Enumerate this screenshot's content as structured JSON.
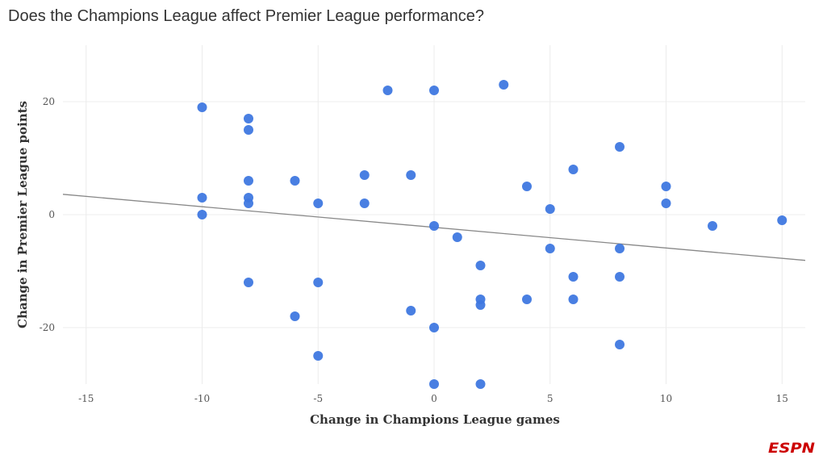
{
  "chart_data": {
    "type": "scatter",
    "title": "Does the Champions League affect Premier League performance?",
    "xlabel": "Change in Champions League games",
    "ylabel": "Change in Premier League points",
    "xlim": [
      -16,
      16
    ],
    "ylim": [
      -30,
      30
    ],
    "xticks": [
      -15,
      -10,
      -5,
      0,
      5,
      10,
      15
    ],
    "yticks": [
      -20,
      0,
      20
    ],
    "grid": true,
    "point_color": "#3f78e0",
    "trendline": {
      "x": [
        -16,
        16
      ],
      "y": [
        3.6,
        -8.1
      ],
      "color": "#888888"
    },
    "points": [
      [
        -10,
        19
      ],
      [
        -8,
        17
      ],
      [
        -8,
        15
      ],
      [
        -8,
        6
      ],
      [
        -8,
        3
      ],
      [
        -8,
        2
      ],
      [
        -10,
        3
      ],
      [
        -10,
        0
      ],
      [
        -6,
        6
      ],
      [
        -5,
        2
      ],
      [
        -3,
        7
      ],
      [
        -3,
        2
      ],
      [
        -2,
        22
      ],
      [
        0,
        22
      ],
      [
        3,
        23
      ],
      [
        -1,
        7
      ],
      [
        0,
        -2
      ],
      [
        1,
        -4
      ],
      [
        4,
        5
      ],
      [
        5,
        1
      ],
      [
        6,
        8
      ],
      [
        8,
        12
      ],
      [
        10,
        5
      ],
      [
        10,
        2
      ],
      [
        12,
        -2
      ],
      [
        15,
        -1
      ],
      [
        5,
        -6
      ],
      [
        8,
        -6
      ],
      [
        2,
        -9
      ],
      [
        6,
        -11
      ],
      [
        8,
        -11
      ],
      [
        -8,
        -12
      ],
      [
        -5,
        -12
      ],
      [
        2,
        -15
      ],
      [
        2,
        -16
      ],
      [
        4,
        -15
      ],
      [
        6,
        -15
      ],
      [
        -1,
        -17
      ],
      [
        -6,
        -18
      ],
      [
        0,
        -20
      ],
      [
        8,
        -23
      ],
      [
        -5,
        -25
      ],
      [
        0,
        -30
      ],
      [
        2,
        -30
      ]
    ]
  },
  "branding": {
    "logo": "ESPN",
    "logo_color": "#cc0000"
  }
}
